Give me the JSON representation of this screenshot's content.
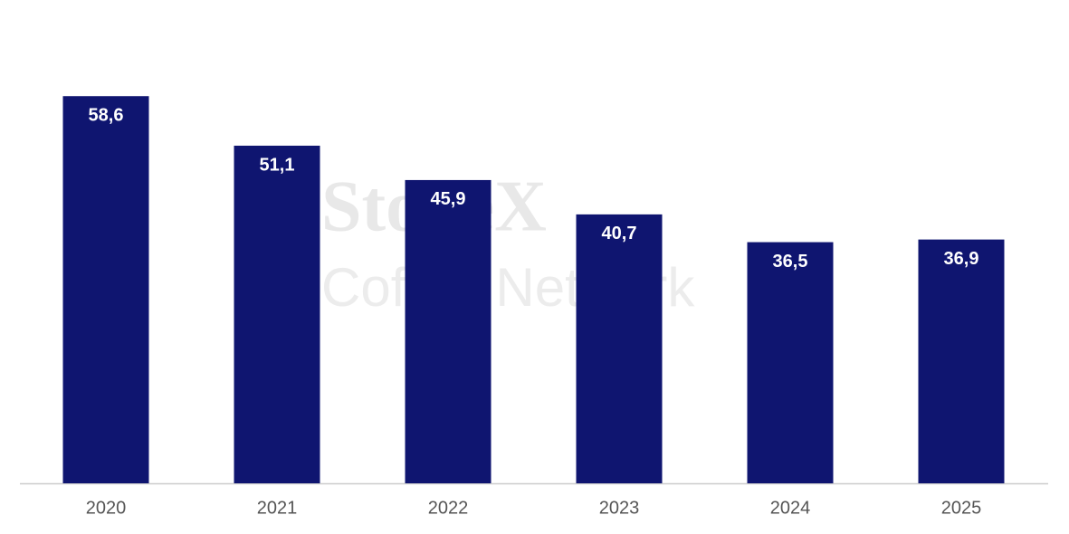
{
  "chart_data": {
    "type": "bar",
    "categories": [
      "2020",
      "2021",
      "2022",
      "2023",
      "2024",
      "2025"
    ],
    "values": [
      58.6,
      51.1,
      45.9,
      40.7,
      36.5,
      36.9
    ],
    "value_labels": [
      "58,6",
      "51,1",
      "45,9",
      "40,7",
      "36,5",
      "36,9"
    ],
    "color": "#0f1570",
    "ylim": [
      0,
      70
    ],
    "watermark": [
      "StoneX",
      "Coffee Network"
    ]
  }
}
